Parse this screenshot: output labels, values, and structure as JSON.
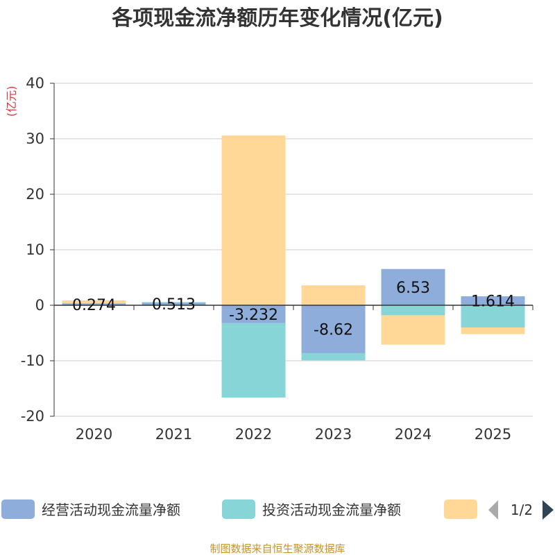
{
  "chart_data": {
    "type": "bar",
    "stacked": true,
    "title": "各项现金流净额历年变化情况(亿元)",
    "unit_label": "(亿元)",
    "categories": [
      "2020",
      "2021",
      "2022",
      "2023",
      "2024",
      "2025"
    ],
    "ylim": [
      -20,
      40
    ],
    "yticks": [
      -20,
      -10,
      0,
      10,
      20,
      30,
      40
    ],
    "grid": true,
    "series": [
      {
        "name": "经营活动现金流量净额",
        "color": "#8eaddb",
        "values": [
          0.274,
          0.513,
          -3.232,
          -8.62,
          6.53,
          1.614
        ],
        "labels": [
          "0.274",
          "0.513",
          "-3.232",
          "-8.62",
          "6.53",
          "1.614"
        ]
      },
      {
        "name": "投资活动现金流量净额",
        "color": "#88d5d8",
        "values": [
          0.1,
          0.05,
          -13.4,
          -1.3,
          -1.8,
          -4.0
        ]
      },
      {
        "name": "",
        "color": "#ffd898",
        "values": [
          0.5,
          0.0,
          30.6,
          3.6,
          -5.3,
          -1.2
        ]
      }
    ],
    "legend": {
      "position": "bottom",
      "page": "1/2"
    }
  },
  "source": "制图数据来自恒生聚源数据库",
  "colors": {
    "title": "#333333",
    "unit": "#d9363e",
    "source": "#c8922a",
    "axis": "#333333",
    "grid": "#cccccc",
    "pager_active": "#2f4554",
    "pager_inactive": "#aaaaaa"
  }
}
